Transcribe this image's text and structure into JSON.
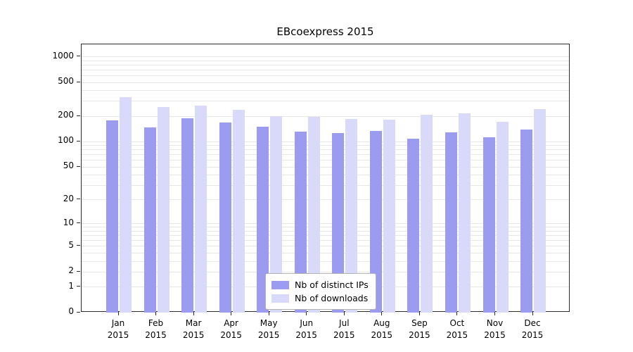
{
  "chart_data": {
    "type": "bar",
    "title": "EBcoexpress 2015",
    "categories": [
      "Jan",
      "Feb",
      "Mar",
      "Apr",
      "May",
      "Jun",
      "Jul",
      "Aug",
      "Sep",
      "Oct",
      "Nov",
      "Dec"
    ],
    "x_sub_label": "2015",
    "series": [
      {
        "name": "Nb of distinct IPs",
        "color": "#9b9bef",
        "values": [
          178,
          148,
          190,
          168,
          152,
          132,
          126,
          135,
          108,
          130,
          113,
          140
        ]
      },
      {
        "name": "Nb of downloads",
        "color": "#d9d9f9",
        "values": [
          335,
          258,
          265,
          238,
          200,
          197,
          185,
          182,
          210,
          215,
          172,
          245
        ]
      }
    ],
    "y_scale": "log10(value+1)",
    "y_ticks": [
      0,
      1,
      2,
      5,
      10,
      20,
      50,
      100,
      200,
      500,
      1000
    ],
    "grid_values": [
      1,
      2,
      3,
      4,
      5,
      6,
      7,
      8,
      9,
      10,
      20,
      30,
      40,
      50,
      60,
      70,
      80,
      90,
      100,
      200,
      300,
      400,
      500,
      600,
      700,
      800,
      900,
      1000
    ],
    "y_max": 1400,
    "grid": true,
    "legend_position": "bottom-center",
    "xlabel": "",
    "ylabel": ""
  }
}
